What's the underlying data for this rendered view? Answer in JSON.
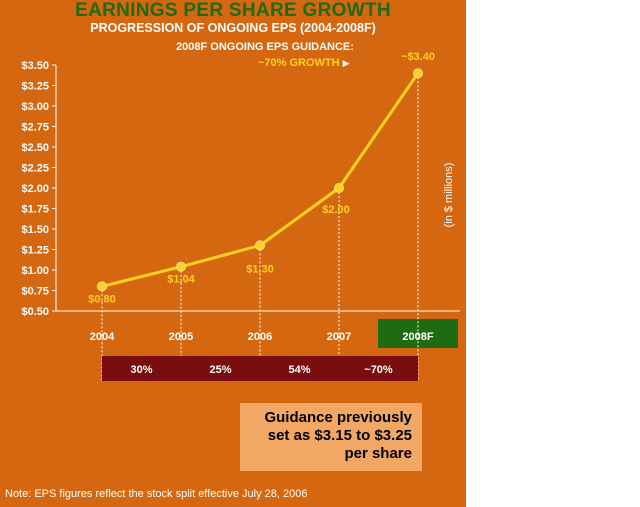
{
  "title": "EARNINGS PER SHARE GROWTH",
  "subtitle": "PROGRESSION OF ONGOING EPS (2004-2008F)",
  "guidance_heading": "2008F ONGOING EPS GUIDANCE:",
  "growth_label": "~70% GROWTH",
  "growth_arrow": "▶",
  "callout": {
    "line1": "Guidance previously",
    "line2": "set as $3.15 to $3.25",
    "line3": "per share"
  },
  "note": "Note: EPS figures reflect the stock split effective July 28, 2006",
  "colors": {
    "background": "#D4670F",
    "line": "#FFD21F",
    "growth_bar": "#7A0D0D",
    "forecast_highlight": "#1E6B12",
    "callout": "#F2A864"
  },
  "chart_data": {
    "type": "line",
    "title": "EARNINGS PER SHARE GROWTH",
    "subtitle": "PROGRESSION OF ONGOING EPS (2004-2008F)",
    "ylabel": "(in $ millions)",
    "categories": [
      "2004",
      "2005",
      "2006",
      "2007",
      "2008F"
    ],
    "values": [
      0.8,
      1.04,
      1.3,
      2.0,
      3.4
    ],
    "data_labels": [
      "$0.80",
      "$1.04",
      "$1.30",
      "$2.00",
      "~$3.40"
    ],
    "ylim": [
      0.5,
      3.5
    ],
    "yticks": [
      "$0.50",
      "$0.75",
      "$1.00",
      "$1.25",
      "$1.50",
      "$1.75",
      "$2.00",
      "$2.25",
      "$2.50",
      "$2.75",
      "$3.00",
      "$3.25",
      "$3.50"
    ],
    "ytick_values": [
      0.5,
      0.75,
      1.0,
      1.25,
      1.5,
      1.75,
      2.0,
      2.25,
      2.5,
      2.75,
      3.0,
      3.25,
      3.5
    ],
    "growth_rates": [
      "30%",
      "25%",
      "54%",
      "~70%"
    ],
    "forecast_guidance_range": [
      3.15,
      3.25
    ],
    "grid": false,
    "highlight_category": "2008F"
  }
}
